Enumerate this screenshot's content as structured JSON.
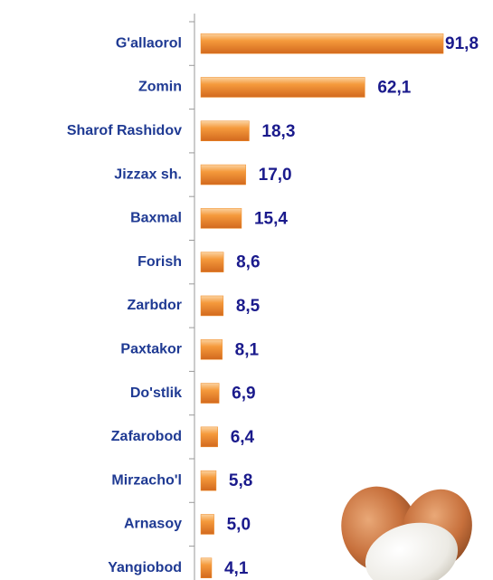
{
  "chart_data": {
    "type": "bar",
    "orientation": "horizontal",
    "categories": [
      "G'allaorol",
      "Zomin",
      "Sharof Rashidov",
      "Jizzax sh.",
      "Baxmal",
      "Forish",
      "Zarbdor",
      "Paxtakor",
      "Do'stlik",
      "Zafarobod",
      "Mirzacho'l",
      "Arnasoy",
      "Yangiobod"
    ],
    "values": [
      91.8,
      62.1,
      18.3,
      17.0,
      15.4,
      8.6,
      8.5,
      8.1,
      6.9,
      6.4,
      5.8,
      5.0,
      4.1
    ],
    "value_labels": [
      "91,8",
      "62,1",
      "18,3",
      "17,0",
      "15,4",
      "8,6",
      "8,5",
      "8,1",
      "6,9",
      "6,4",
      "5,8",
      "5,0",
      "4,1"
    ],
    "color": "#f08a24",
    "xlim": [
      0,
      100
    ]
  }
}
